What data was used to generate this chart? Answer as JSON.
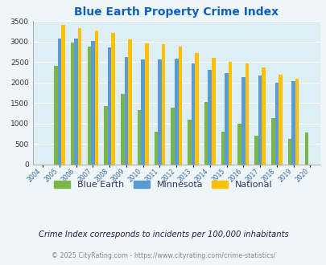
{
  "title": "Blue Earth Property Crime Index",
  "title_color": "#1060c0",
  "subtitle": "Crime Index corresponds to incidents per 100,000 inhabitants",
  "footer": "© 2025 CityRating.com - https://www.cityrating.com/crime-statistics/",
  "years": [
    2004,
    2005,
    2006,
    2007,
    2008,
    2009,
    2010,
    2011,
    2012,
    2013,
    2014,
    2015,
    2016,
    2017,
    2018,
    2019,
    2020
  ],
  "blue_earth": [
    0,
    2400,
    2980,
    2870,
    1430,
    1720,
    1320,
    790,
    1380,
    1100,
    1530,
    800,
    1000,
    690,
    1140,
    620,
    780
  ],
  "minnesota": [
    0,
    3080,
    3080,
    3010,
    2860,
    2630,
    2570,
    2560,
    2580,
    2460,
    2310,
    2230,
    2140,
    2180,
    1995,
    2040,
    0
  ],
  "national": [
    0,
    3400,
    3340,
    3270,
    3210,
    3050,
    2950,
    2940,
    2870,
    2720,
    2610,
    2500,
    2470,
    2370,
    2190,
    2090,
    0
  ],
  "color_blue_earth": "#7ab648",
  "color_minnesota": "#5b9bd5",
  "color_national": "#ffc000",
  "ylim": [
    0,
    3500
  ],
  "yticks": [
    0,
    500,
    1000,
    1500,
    2000,
    2500,
    3000,
    3500
  ],
  "bg_color": "#eef6fa",
  "plot_bg": "#ddeef5",
  "legend_labels": [
    "Blue Earth",
    "Minnesota",
    "National"
  ],
  "bar_width": 0.22
}
